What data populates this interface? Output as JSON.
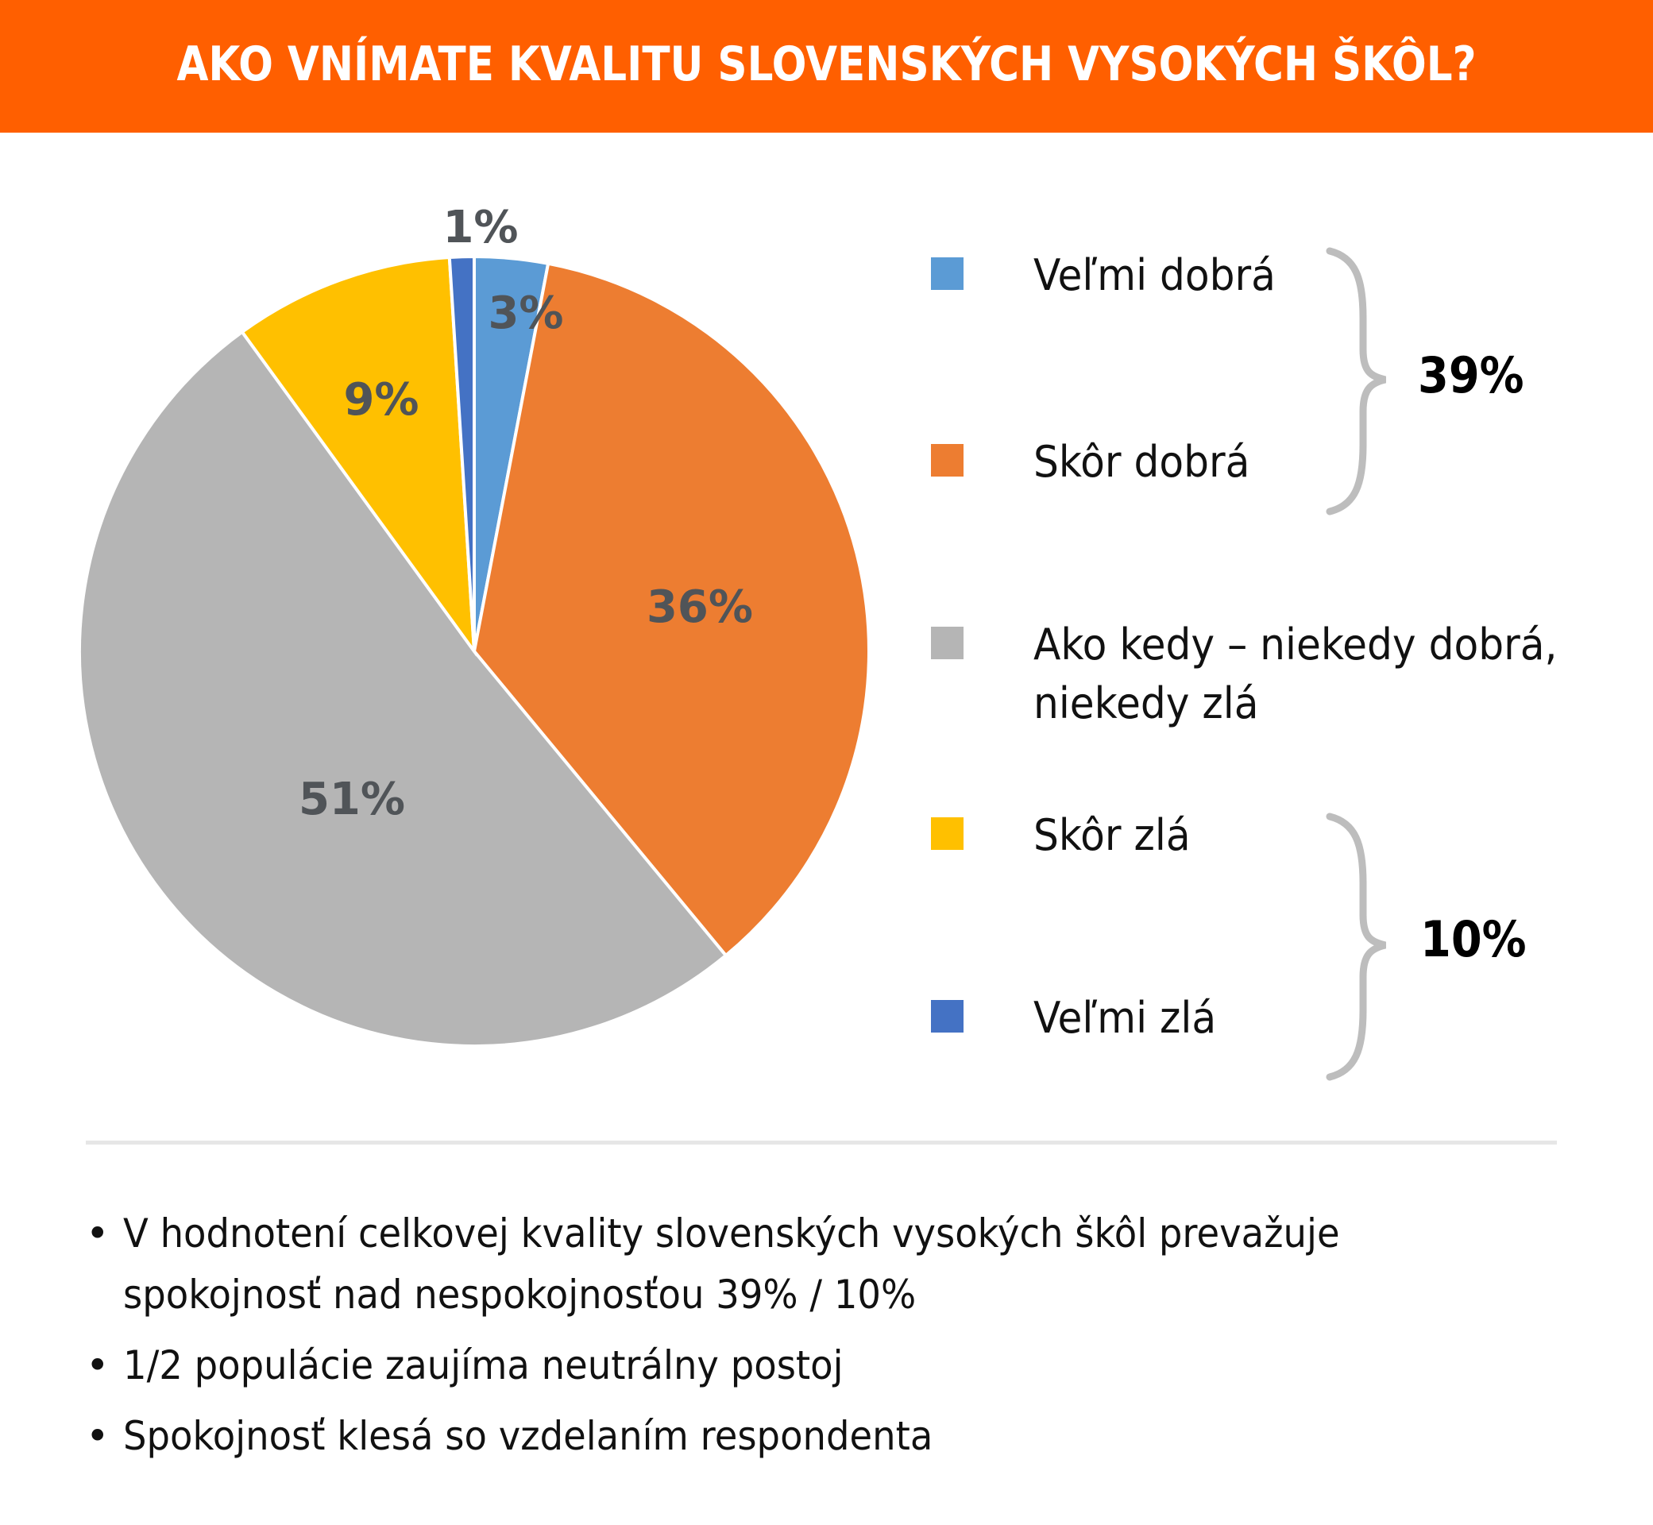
{
  "header": {
    "title": "AKO VNÍMATE KVALITU SLOVENSKÝCH VYSOKÝCH ŠKÔL?",
    "background_color": "#FF5F00"
  },
  "chart_data": {
    "type": "pie",
    "title": "AKO VNÍMATE KVALITU SLOVENSKÝCH VYSOKÝCH ŠKÔL?",
    "categories": [
      "Veľmi dobrá",
      "Skôr dobrá",
      "Ako kedy – niekedy dobrá, niekedy zlá",
      "Skôr zlá",
      "Veľmi zlá"
    ],
    "values": [
      3,
      36,
      51,
      9,
      1
    ],
    "labels": [
      "3%",
      "36%",
      "51%",
      "9%",
      "1%"
    ],
    "colors": [
      "#5B9BD5",
      "#ED7D31",
      "#B5B5B5",
      "#FFC000",
      "#4472C4"
    ],
    "start_angle": "top, clockwise",
    "legend_position": "right",
    "groups": [
      {
        "members": [
          "Veľmi dobrá",
          "Skôr dobrá"
        ],
        "total": "39%"
      },
      {
        "members": [
          "Skôr zlá",
          "Veľmi zlá"
        ],
        "total": "10%"
      }
    ]
  },
  "legend": {
    "items": [
      {
        "label": "Veľmi dobrá",
        "color": "#5B9BD5"
      },
      {
        "label": "Skôr dobrá",
        "color": "#ED7D31"
      },
      {
        "label_line1": "Ako kedy – niekedy dobrá,",
        "label_line2": "niekedy zlá",
        "color": "#B5B5B5"
      },
      {
        "label": "Skôr zlá",
        "color": "#FFC000"
      },
      {
        "label": "Veľmi zlá",
        "color": "#4472C4"
      }
    ],
    "group_positive": "39%",
    "group_negative": "10%"
  },
  "slice_labels": {
    "velmi_dobra": "3%",
    "skor_dobra": "36%",
    "ako_kedy": "51%",
    "skor_zla": "9%",
    "velmi_zla": "1%"
  },
  "notes": {
    "bullet": "•",
    "items": [
      {
        "line1": "V hodnotení celkovej kvality slovenských vysokých škôl prevažuje",
        "line2": "spokojnosť nad nespokojnosťou 39% / 10%"
      },
      {
        "line1": "1/2 populácie zaujíma neutrálny postoj"
      },
      {
        "line1": "Spokojnosť klesá so vzdelaním respondenta"
      }
    ]
  }
}
